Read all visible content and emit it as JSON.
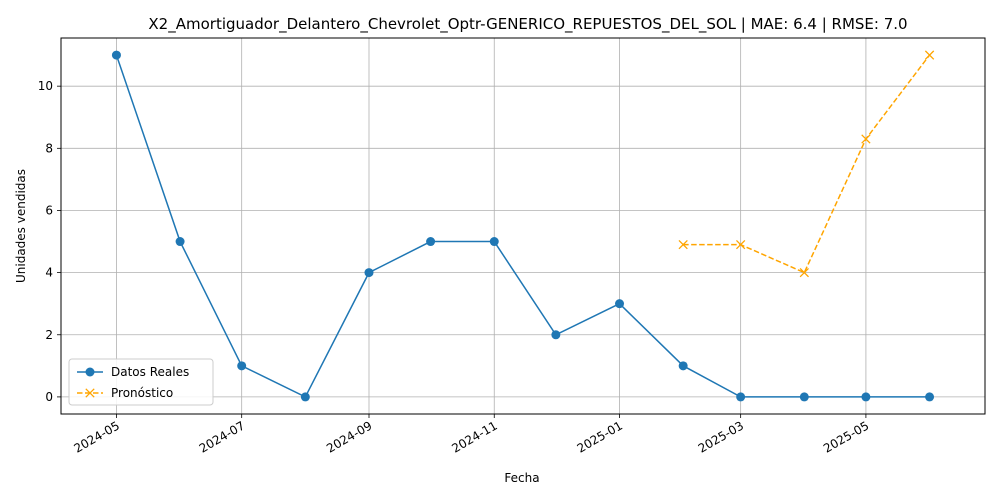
{
  "chart_data": {
    "type": "line",
    "title": "X2_Amortiguador_Delantero_Chevrolet_Optr-GENERICO_REPUESTOS_DEL_SOL | MAE: 6.4 | RMSE: 7.0",
    "xlabel": "Fecha",
    "ylabel": "Unidades vendidas",
    "xlim": [
      "2024-04-04",
      "2025-06-28"
    ],
    "ylim": [
      -0.55,
      11.55
    ],
    "x_ticks": [
      "2024-05",
      "2024-07",
      "2024-09",
      "2024-11",
      "2025-01",
      "2025-03",
      "2025-05"
    ],
    "y_ticks": [
      0,
      2,
      4,
      6,
      8,
      10
    ],
    "grid": true,
    "legend_position": "lower-left",
    "series": [
      {
        "name": "Datos Reales",
        "color": "#1f77b4",
        "marker": "circle",
        "line_style": "solid",
        "x": [
          "2024-05-01",
          "2024-06-01",
          "2024-07-01",
          "2024-08-01",
          "2024-09-01",
          "2024-10-01",
          "2024-11-01",
          "2024-12-01",
          "2025-01-01",
          "2025-02-01",
          "2025-03-01",
          "2025-04-01",
          "2025-05-01",
          "2025-06-01"
        ],
        "y": [
          11,
          5,
          1,
          0,
          4,
          5,
          5,
          2,
          3,
          1,
          0,
          0,
          0,
          0
        ]
      },
      {
        "name": "Pronóstico",
        "color": "#ffa500",
        "marker": "x",
        "line_style": "dashed",
        "x": [
          "2025-02-01",
          "2025-03-01",
          "2025-04-01",
          "2025-05-01",
          "2025-06-01"
        ],
        "y": [
          4.9,
          4.9,
          4.0,
          8.3,
          11.0
        ]
      }
    ]
  }
}
